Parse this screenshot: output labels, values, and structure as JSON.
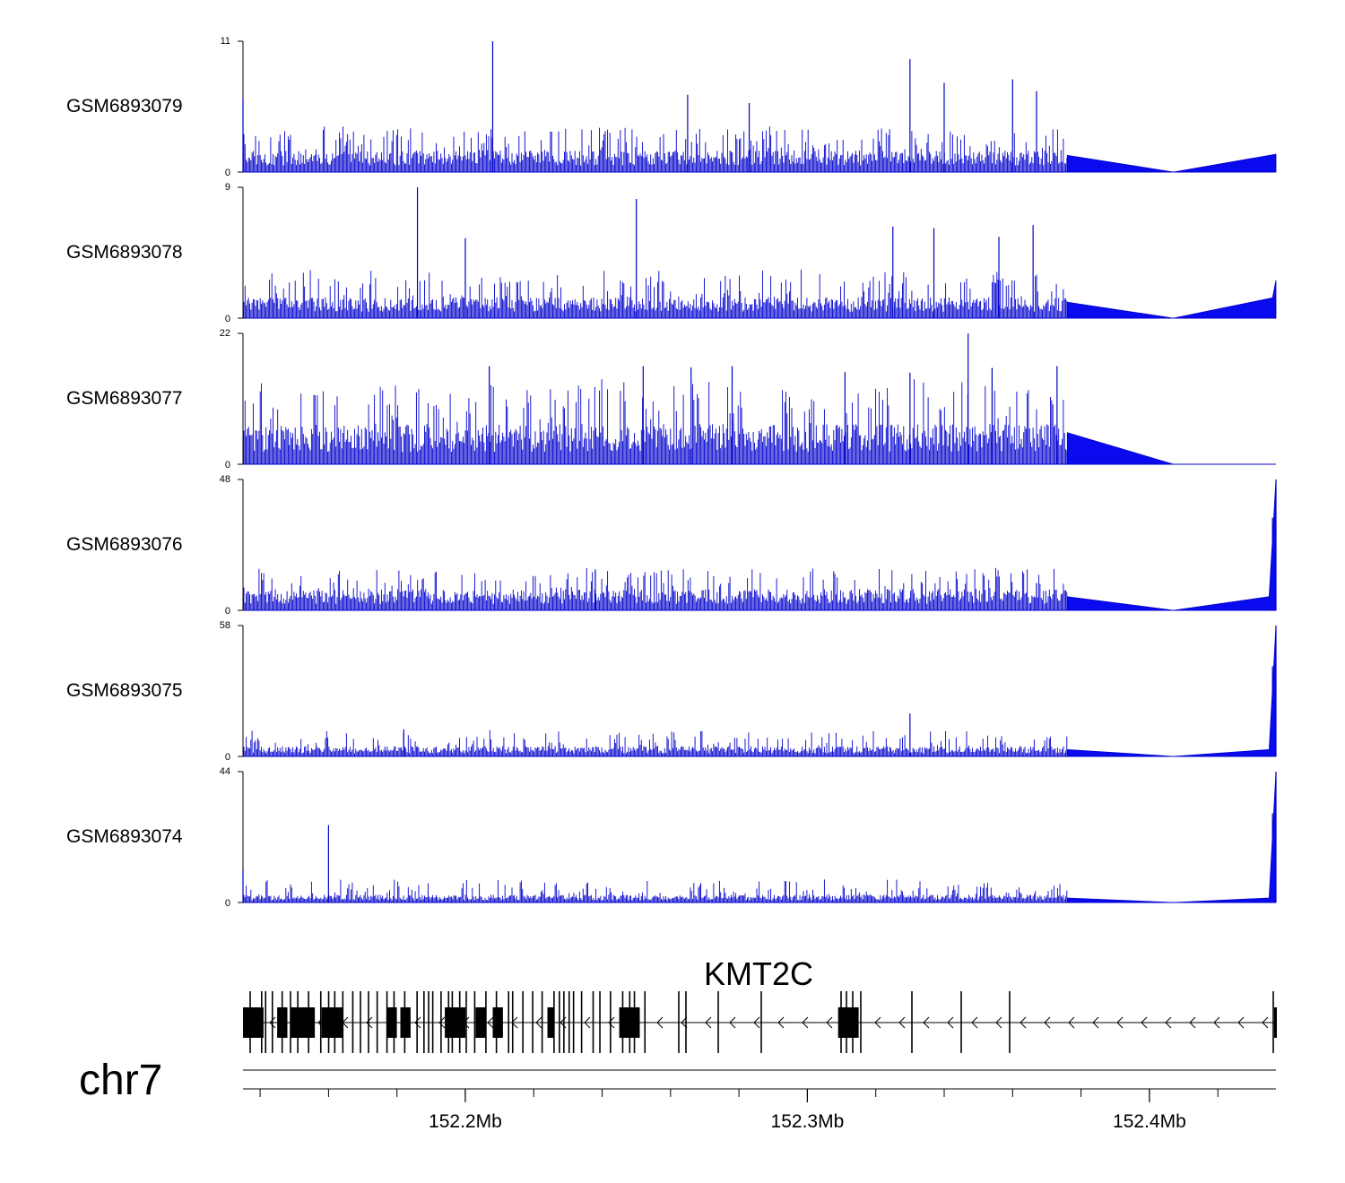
{
  "colors": {
    "signal": "#0000cc",
    "signal_fill": "#0a0aee",
    "gene": "#000000",
    "axis": "#000000",
    "background": "#ffffff"
  },
  "chart_data": {
    "type": "area",
    "title": "",
    "chromosome": "chr7",
    "region": {
      "start_mb": 152.135,
      "end_mb": 152.437
    },
    "tracks": [
      {
        "name": "GSM6893079",
        "ymax": 11,
        "ymin": 0,
        "peaks": [
          [
            152.135,
            6.2
          ],
          [
            152.208,
            11
          ],
          [
            152.265,
            6.5
          ],
          [
            152.283,
            5.8
          ],
          [
            152.33,
            9.5
          ],
          [
            152.34,
            7.5
          ],
          [
            152.36,
            7.8
          ],
          [
            152.367,
            6.8
          ]
        ],
        "base_level": 1.4,
        "spike_level": 3.0,
        "density_end_mb": 152.376,
        "tail": [
          [
            152.376,
            1.4
          ],
          [
            152.407,
            0
          ],
          [
            152.437,
            1.5
          ]
        ]
      },
      {
        "name": "GSM6893078",
        "ymax": 9,
        "ymin": 0,
        "peaks": [
          [
            152.186,
            9
          ],
          [
            152.2,
            5.5
          ],
          [
            152.25,
            8.2
          ],
          [
            152.325,
            6.3
          ],
          [
            152.337,
            6.2
          ],
          [
            152.356,
            5.6
          ],
          [
            152.366,
            6.4
          ]
        ],
        "base_level": 1.1,
        "spike_level": 2.6,
        "density_end_mb": 152.376,
        "tail": [
          [
            152.376,
            1.1
          ],
          [
            152.407,
            0
          ],
          [
            152.436,
            1.4
          ],
          [
            152.437,
            2.6
          ]
        ]
      },
      {
        "name": "GSM6893077",
        "ymax": 22,
        "ymin": 0,
        "peaks": [
          [
            152.207,
            16.5
          ],
          [
            152.252,
            16.5
          ],
          [
            152.266,
            16.3
          ],
          [
            152.278,
            16.5
          ],
          [
            152.311,
            15.5
          ],
          [
            152.33,
            15.4
          ],
          [
            152.347,
            22
          ],
          [
            152.354,
            16.2
          ],
          [
            152.373,
            16.5
          ]
        ],
        "base_level": 5.2,
        "spike_level": 11.0,
        "density_end_mb": 152.376,
        "tail": [
          [
            152.376,
            5.3
          ],
          [
            152.407,
            0
          ]
        ]
      },
      {
        "name": "GSM6893076",
        "ymax": 48,
        "ymin": 0,
        "peaks": [
          [
            152.238,
            15
          ],
          [
            152.367,
            10
          ],
          [
            152.436,
            34
          ],
          [
            152.437,
            48
          ]
        ],
        "base_level": 6.0,
        "spike_level": 12.0,
        "density_end_mb": 152.376,
        "tail": [
          [
            152.376,
            5.0
          ],
          [
            152.407,
            0
          ],
          [
            152.435,
            5.0
          ],
          [
            152.437,
            48
          ]
        ]
      },
      {
        "name": "GSM6893075",
        "ymax": 58,
        "ymin": 0,
        "peaks": [
          [
            152.182,
            12
          ],
          [
            152.33,
            19
          ],
          [
            152.436,
            40
          ],
          [
            152.437,
            58
          ]
        ],
        "base_level": 3.5,
        "spike_level": 9.0,
        "density_end_mb": 152.376,
        "tail": [
          [
            152.376,
            3.0
          ],
          [
            152.407,
            0
          ],
          [
            152.435,
            3.0
          ],
          [
            152.437,
            58
          ]
        ]
      },
      {
        "name": "GSM6893074",
        "ymax": 44,
        "ymin": 0,
        "peaks": [
          [
            152.135,
            11
          ],
          [
            152.16,
            26
          ],
          [
            152.436,
            30
          ],
          [
            152.437,
            44
          ]
        ],
        "base_level": 2.0,
        "spike_level": 6.0,
        "density_end_mb": 152.376,
        "tail": [
          [
            152.376,
            1.5
          ],
          [
            152.407,
            0
          ],
          [
            152.435,
            1.5
          ],
          [
            152.437,
            44
          ]
        ]
      }
    ],
    "gene": {
      "name": "KMT2C",
      "strand": "-",
      "exons_mb": [
        [
          152.135,
          152.141
        ],
        [
          152.145,
          152.148
        ],
        [
          152.149,
          152.156
        ],
        [
          152.158,
          152.164
        ],
        [
          152.177,
          152.18
        ],
        [
          152.181,
          152.184
        ],
        [
          152.194,
          152.2
        ],
        [
          152.203,
          152.206
        ],
        [
          152.208,
          152.211
        ],
        [
          152.224,
          152.226
        ],
        [
          152.245,
          152.251
        ],
        [
          152.309,
          152.313
        ],
        [
          152.313,
          152.315
        ]
      ]
    },
    "x_axis": {
      "ticks_mb": [
        152.2,
        152.3,
        152.4
      ],
      "tick_labels": [
        "152.2Mb",
        "152.3Mb",
        "152.4Mb"
      ],
      "minor_step_mb": 0.02
    }
  }
}
